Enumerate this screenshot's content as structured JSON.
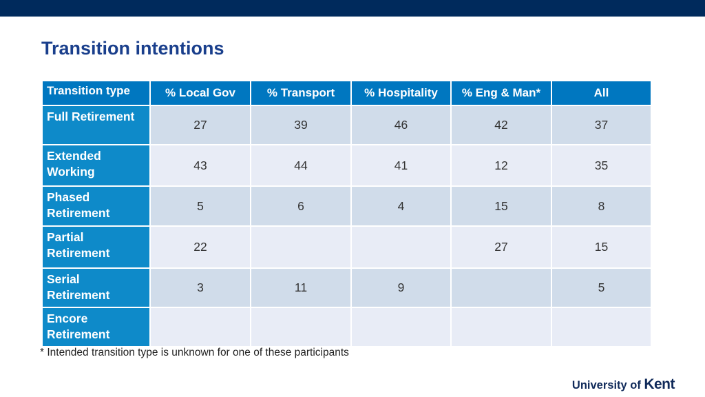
{
  "title": "Transition intentions",
  "colors": {
    "top_bar": "#002a5c",
    "title": "#1a3f8c",
    "header_fill": "#0077c0",
    "row_header_fill": "#0e8ac9",
    "band_dark": "#d0dcea",
    "band_light": "#e8ecf6"
  },
  "table": {
    "headers": [
      "Transition type",
      "% Local Gov",
      "% Transport",
      "% Hospitality",
      "% Eng & Man*",
      "All"
    ],
    "rows": [
      {
        "label": "Full Retirement",
        "values": [
          "27",
          "39",
          "46",
          "42",
          "37"
        ]
      },
      {
        "label": "Extended Working",
        "values": [
          "43",
          "44",
          "41",
          "12",
          "35"
        ]
      },
      {
        "label": "Phased Retirement",
        "values": [
          "5",
          "6",
          "4",
          "15",
          "8"
        ]
      },
      {
        "label": "Partial Retirement",
        "values": [
          "22",
          "",
          "",
          "27",
          "15"
        ]
      },
      {
        "label": "Serial Retirement",
        "values": [
          "3",
          "11",
          "9",
          "",
          "5"
        ]
      },
      {
        "label": "Encore Retirement",
        "values": [
          "",
          "",
          "",
          "",
          ""
        ]
      }
    ]
  },
  "footnote": "* Intended transition type is unknown for one of these participants",
  "logo": {
    "text_part1": "University of",
    "text_part2": "Kent"
  }
}
